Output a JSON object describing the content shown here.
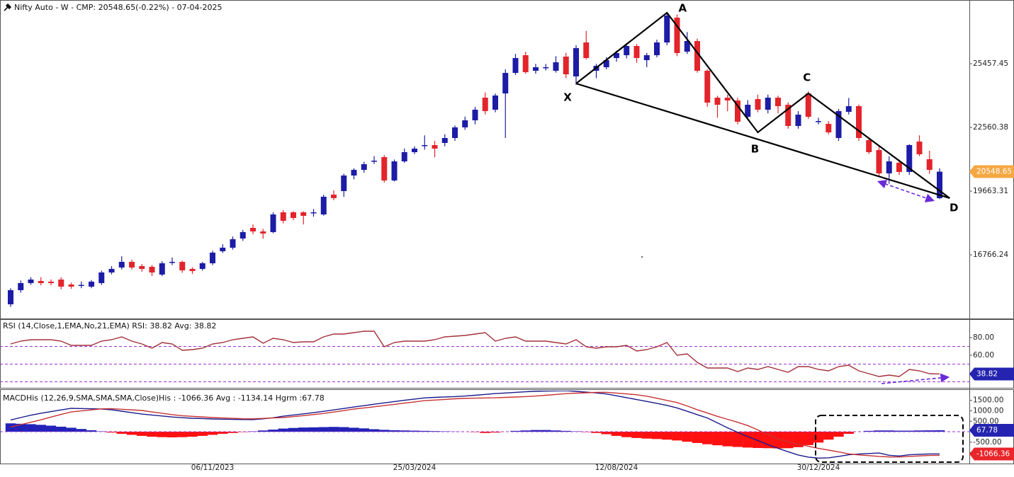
{
  "chart_data": [
    {
      "type": "candlestick",
      "title": "Nifty Auto - W - CMP: 20548.65(-0.22%) - 07-04-2025",
      "categories": [
        null,
        null,
        null,
        null,
        null,
        null,
        null,
        null,
        null,
        null,
        null,
        null,
        null,
        null,
        null,
        null,
        null,
        null,
        null,
        null,
        "06/11/2023",
        null,
        null,
        null,
        null,
        null,
        null,
        null,
        null,
        null,
        null,
        null,
        null,
        null,
        null,
        null,
        null,
        null,
        null,
        null,
        "25/03/2024",
        null,
        null,
        null,
        null,
        null,
        null,
        null,
        null,
        null,
        null,
        null,
        null,
        null,
        null,
        null,
        null,
        null,
        null,
        null,
        "12/08/2024",
        null,
        null,
        null,
        null,
        null,
        null,
        null,
        null,
        null,
        null,
        null,
        null,
        null,
        null,
        null,
        null,
        null,
        null,
        null,
        "30/12/2024",
        null,
        null,
        null,
        null,
        null,
        null,
        null,
        null,
        null,
        null,
        null,
        null
      ],
      "candles": {
        "open": [
          14517,
          15160,
          15482,
          15579,
          15546,
          15643,
          15418,
          15386,
          15321,
          15482,
          15965,
          16190,
          16447,
          16254,
          16222,
          15868,
          16440,
          16447,
          16126,
          16126,
          16383,
          16930,
          17091,
          17509,
          17992,
          17831,
          17799,
          18700,
          18700,
          18700,
          18690,
          18603,
          19504,
          19665,
          20373,
          20631,
          21040,
          21210,
          20148,
          21017,
          21435,
          21750,
          21757,
          21854,
          22079,
          22562,
          22883,
          23913,
          23366,
          24106,
          25039,
          25844,
          25136,
          25290,
          25136,
          25780,
          24879,
          26423,
          25136,
          25297,
          25715,
          25844,
          26262,
          25619,
          25844,
          26423,
          27550,
          26005,
          26488,
          25136,
          23913,
          23913,
          23784,
          23044,
          23849,
          23366,
          23913,
          23591,
          22626,
          24106,
          22819,
          22722,
          22079,
          23270,
          23527,
          21982,
          21532,
          20470,
          20953,
          20534,
          21918,
          21114,
          19344
        ],
        "high": [
          15250,
          15600,
          15750,
          15750,
          15650,
          15750,
          15500,
          15550,
          15620,
          16050,
          16250,
          16700,
          16550,
          16350,
          16300,
          16480,
          16650,
          16500,
          16200,
          16450,
          16950,
          17250,
          17600,
          17900,
          18150,
          17950,
          18700,
          18800,
          18750,
          18750,
          18850,
          19500,
          19700,
          20450,
          20700,
          21000,
          21250,
          21300,
          21100,
          21600,
          21700,
          22200,
          21950,
          22250,
          22650,
          23050,
          23500,
          24150,
          24100,
          25200,
          25900,
          26000,
          25450,
          25450,
          25800,
          25950,
          26300,
          26950,
          25450,
          25750,
          26050,
          26400,
          26350,
          25950,
          26550,
          27800,
          27700,
          26900,
          26600,
          25200,
          24000,
          24050,
          23900,
          23800,
          24050,
          24050,
          24000,
          23700,
          23300,
          24200,
          23000,
          22850,
          23400,
          23900,
          23600,
          22100,
          21700,
          21250,
          21100,
          21800,
          22200,
          21500,
          20700
        ],
        "low": [
          14400,
          15050,
          15400,
          15380,
          15380,
          15200,
          15220,
          15250,
          15250,
          15400,
          15880,
          16100,
          16100,
          16000,
          15800,
          15800,
          16300,
          15950,
          15900,
          16050,
          16300,
          16850,
          17000,
          17400,
          17700,
          17500,
          17750,
          18200,
          18350,
          18150,
          18500,
          18550,
          19250,
          19400,
          20200,
          20500,
          20900,
          20050,
          20100,
          20950,
          21350,
          21550,
          21200,
          21700,
          21950,
          22450,
          22700,
          23150,
          23250,
          22079,
          24950,
          25000,
          25000,
          25150,
          25050,
          24800,
          24500,
          25650,
          24800,
          25200,
          25550,
          25700,
          25500,
          25300,
          25750,
          26300,
          25800,
          25900,
          25050,
          23500,
          23000,
          23300,
          22700,
          22900,
          23250,
          23200,
          23200,
          22500,
          22500,
          22950,
          22700,
          22250,
          21950,
          23150,
          21950,
          21350,
          20350,
          20000,
          20400,
          20400,
          21250,
          20450,
          19300
        ],
        "close": [
          15160,
          15482,
          15643,
          15482,
          15482,
          15321,
          15321,
          15400,
          15546,
          15965,
          16126,
          16447,
          16190,
          16126,
          15965,
          16383,
          16447,
          16061,
          16029,
          16383,
          16866,
          17091,
          17477,
          17799,
          17831,
          17735,
          18603,
          18314,
          18443,
          18539,
          18700,
          19408,
          19344,
          20373,
          20631,
          20888,
          21049,
          20148,
          21017,
          21435,
          21596,
          21757,
          21596,
          22079,
          22562,
          22883,
          23366,
          23302,
          24010,
          25039,
          25715,
          25072,
          25297,
          25297,
          25522,
          24975,
          26166,
          25715,
          25361,
          25619,
          25941,
          26262,
          25715,
          25844,
          26423,
          27646,
          25941,
          26488,
          25136,
          23688,
          23591,
          23784,
          22819,
          23591,
          23366,
          23913,
          23527,
          22626,
          23141,
          23044,
          22850,
          22336,
          23302,
          23527,
          22079,
          21435,
          20470,
          21017,
          20534,
          21757,
          21339,
          20631,
          20548.65
        ]
      },
      "up_color": "#1c1ca6",
      "down_color": "#e3242b",
      "ylim": [
        13873,
        28354
      ],
      "yticks": [
        {
          "value": 16766.24,
          "label": "16766.24"
        },
        {
          "value": 19663.31,
          "label": "19663.31"
        },
        {
          "value": 22560.38,
          "label": "22560.38"
        },
        {
          "value": 25457.45,
          "label": "25457.45"
        }
      ],
      "last_tag": {
        "value": 20548.65,
        "label": "20548.65",
        "color": "#f5a742"
      },
      "pattern": {
        "color": "#000000",
        "points": [
          {
            "label": "X",
            "index": 56,
            "value": 24557
          },
          {
            "label": "A",
            "index": 65,
            "value": 27775
          },
          {
            "label": "B",
            "index": 74,
            "value": 22336
          },
          {
            "label": "C",
            "index": 79,
            "value": 24106
          },
          {
            "label": "D",
            "index": 93,
            "value": 19344
          }
        ]
      }
    },
    {
      "type": "line",
      "title": "RSI (14,Close,1,EMA,No,21,EMA) RSI: 38.82 Avg: 38.82",
      "color": "#a3303a",
      "values": [
        72.8,
        76,
        77.6,
        77.6,
        77.6,
        76,
        71.2,
        71.2,
        71.2,
        76,
        77.6,
        80.8,
        76,
        72.8,
        68,
        74.4,
        72.8,
        65.6,
        66.4,
        68,
        72.8,
        74.4,
        77.6,
        79.2,
        80.8,
        73.6,
        79.2,
        77.6,
        74.4,
        75.2,
        75.2,
        80.8,
        84,
        84,
        85.6,
        87.2,
        87.2,
        69.6,
        74.4,
        76,
        76,
        76,
        77.6,
        80.8,
        81.6,
        82.4,
        84,
        85.6,
        76,
        79.2,
        80.8,
        76,
        76,
        76,
        74.4,
        72.8,
        77.6,
        69.6,
        68,
        69.6,
        69.6,
        71.2,
        64.8,
        66.4,
        69.6,
        74.4,
        60,
        61.6,
        52,
        45.6,
        45.6,
        45.6,
        41.6,
        45.6,
        44,
        47.2,
        44,
        40.8,
        47.2,
        47.2,
        44,
        42.4,
        47.2,
        48.8,
        42.4,
        39.2,
        36,
        37.6,
        36,
        44,
        42.4,
        39.2,
        38.82
      ],
      "ylim": [
        23.2,
        100
      ],
      "yticks": [
        {
          "value": 40,
          "label": "40.00"
        },
        {
          "value": 60,
          "label": "60.00"
        },
        {
          "value": 80,
          "label": "80.00"
        }
      ],
      "levels": [
        30,
        50,
        70
      ],
      "level_color": "#9b30d0",
      "last_tag": {
        "value": 38.82,
        "label": "38.82",
        "color": "#2424b0"
      }
    },
    {
      "type": "macd",
      "title": "MACDHis (12,26,9,SMA,SMA,SMA,Close)His : -1066.36 Avg : -1134.14 Hgrm :67.78",
      "macd": {
        "color": "#1a1a8c",
        "values": [
          563,
          678,
          790,
          885,
          966,
          1044,
          1119,
          1108,
          1098,
          1088,
          1051,
          983,
          915,
          847,
          800,
          753,
          705,
          671,
          644,
          631,
          610,
          600,
          590,
          583,
          580,
          617,
          668,
          742,
          800,
          854,
          915,
          976,
          1044,
          1112,
          1183,
          1247,
          1315,
          1380,
          1444,
          1505,
          1563,
          1620,
          1644,
          1664,
          1681,
          1708,
          1746,
          1786,
          1827,
          1854,
          1885,
          1912,
          1936,
          1946,
          1956,
          1963,
          1932,
          1895,
          1858,
          1807,
          1722,
          1631,
          1542,
          1451,
          1356,
          1261,
          1139,
          980,
          817,
          658,
          424,
          186,
          -31,
          -234,
          -424,
          -620,
          -797,
          -959,
          -1115,
          -1217,
          -1264,
          -1251,
          -1183,
          -1105,
          -1068,
          -1044,
          -1020,
          -1129,
          -1163,
          -1105,
          -1081,
          -1064,
          -1066.36
        ]
      },
      "signal": {
        "color": "#c83232",
        "values": [
          224,
          339,
          451,
          569,
          702,
          827,
          949,
          997,
          1044,
          1095,
          1105,
          1075,
          1047,
          1017,
          949,
          885,
          817,
          766,
          736,
          708,
          678,
          658,
          641,
          620,
          617,
          637,
          658,
          678,
          722,
          769,
          820,
          875,
          942,
          1010,
          1085,
          1139,
          1193,
          1251,
          1308,
          1369,
          1427,
          1488,
          1515,
          1546,
          1576,
          1597,
          1607,
          1617,
          1624,
          1644,
          1661,
          1681,
          1708,
          1746,
          1783,
          1824,
          1847,
          1864,
          1885,
          1888,
          1851,
          1810,
          1769,
          1702,
          1603,
          1498,
          1397,
          1234,
          1054,
          895,
          736,
          593,
          451,
          295,
          85,
          -136,
          -346,
          -488,
          -593,
          -698,
          -797,
          -881,
          -969,
          -1061,
          -1112,
          -1146,
          -1183,
          -1207,
          -1210,
          -1183,
          -1159,
          -1136,
          -1134.14
        ]
      },
      "histogram": {
        "up_color": "#2222b8",
        "down_color": "#ff1010",
        "values": [
          400,
          380,
          360,
          330,
          290,
          240,
          190,
          130,
          70,
          20,
          -40,
          -100,
          -150,
          -200,
          -240,
          -260,
          -270,
          -260,
          -240,
          -200,
          -150,
          -100,
          -60,
          -20,
          20,
          60,
          100,
          150,
          180,
          200,
          210,
          220,
          230,
          220,
          190,
          160,
          120,
          90,
          70,
          60,
          50,
          40,
          30,
          20,
          10,
          0,
          -20,
          -60,
          -40,
          0,
          40,
          60,
          80,
          80,
          60,
          40,
          20,
          -20,
          -60,
          -120,
          -200,
          -260,
          -300,
          -330,
          -350,
          -380,
          -420,
          -480,
          -540,
          -600,
          -650,
          -700,
          -730,
          -760,
          -780,
          -790,
          -800,
          -790,
          -740,
          -640,
          -520,
          -380,
          -240,
          -100,
          0,
          40,
          60,
          60,
          50,
          50,
          60,
          65,
          67.78
        ]
      },
      "ylim": [
        -1525,
        1966
      ],
      "yticks": [
        {
          "value": -1000,
          "label": "-1000.00"
        },
        {
          "value": -500,
          "label": "-500.00"
        },
        {
          "value": 500,
          "label": "500.00"
        },
        {
          "value": 1000,
          "label": "1000.00"
        },
        {
          "value": 1500,
          "label": "1500.00"
        }
      ],
      "zero_color": "#9b30d0",
      "tags": [
        {
          "value": 67.78,
          "label": "67.78",
          "color": "#2424b0"
        },
        {
          "value": -1066.36,
          "label": "-1066.36",
          "color": "#e8262b"
        }
      ]
    }
  ]
}
